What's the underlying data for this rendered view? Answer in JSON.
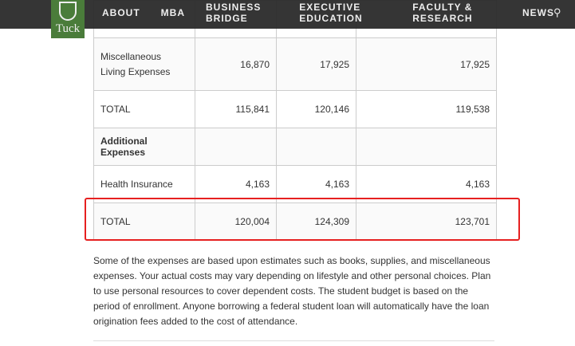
{
  "nav": {
    "logo": "Tuck",
    "items": [
      "ABOUT",
      "MBA",
      "BUSINESS BRIDGE",
      "EXECUTIVE EDUCATION",
      "FACULTY & RESEARCH",
      "NEWS"
    ]
  },
  "table": {
    "rows": [
      {
        "label": "",
        "values": [
          "",
          "",
          ""
        ]
      },
      {
        "label": "Miscellaneous Living Expenses",
        "values": [
          "16,870",
          "17,925",
          "17,925"
        ]
      },
      {
        "label": "TOTAL",
        "values": [
          "115,841",
          "120,146",
          "119,538"
        ]
      },
      {
        "label": "Additional Expenses",
        "values": [
          "",
          "",
          ""
        ],
        "bold": true
      },
      {
        "label": "Health Insurance",
        "values": [
          "4,163",
          "4,163",
          "4,163"
        ]
      },
      {
        "label": "TOTAL",
        "values": [
          "120,004",
          "124,309",
          "123,701"
        ]
      }
    ]
  },
  "highlight_color": "#e62020",
  "note": "Some of the expenses are based upon estimates such as books, supplies, and miscellaneous expenses. Your actual costs may vary depending on lifestyle and other personal choices. Plan to use personal resources to cover dependent costs. The student budget is based on the period of enrollment. Anyone borrowing a federal student loan will automatically have the loan origination fees added to the cost of attendance."
}
